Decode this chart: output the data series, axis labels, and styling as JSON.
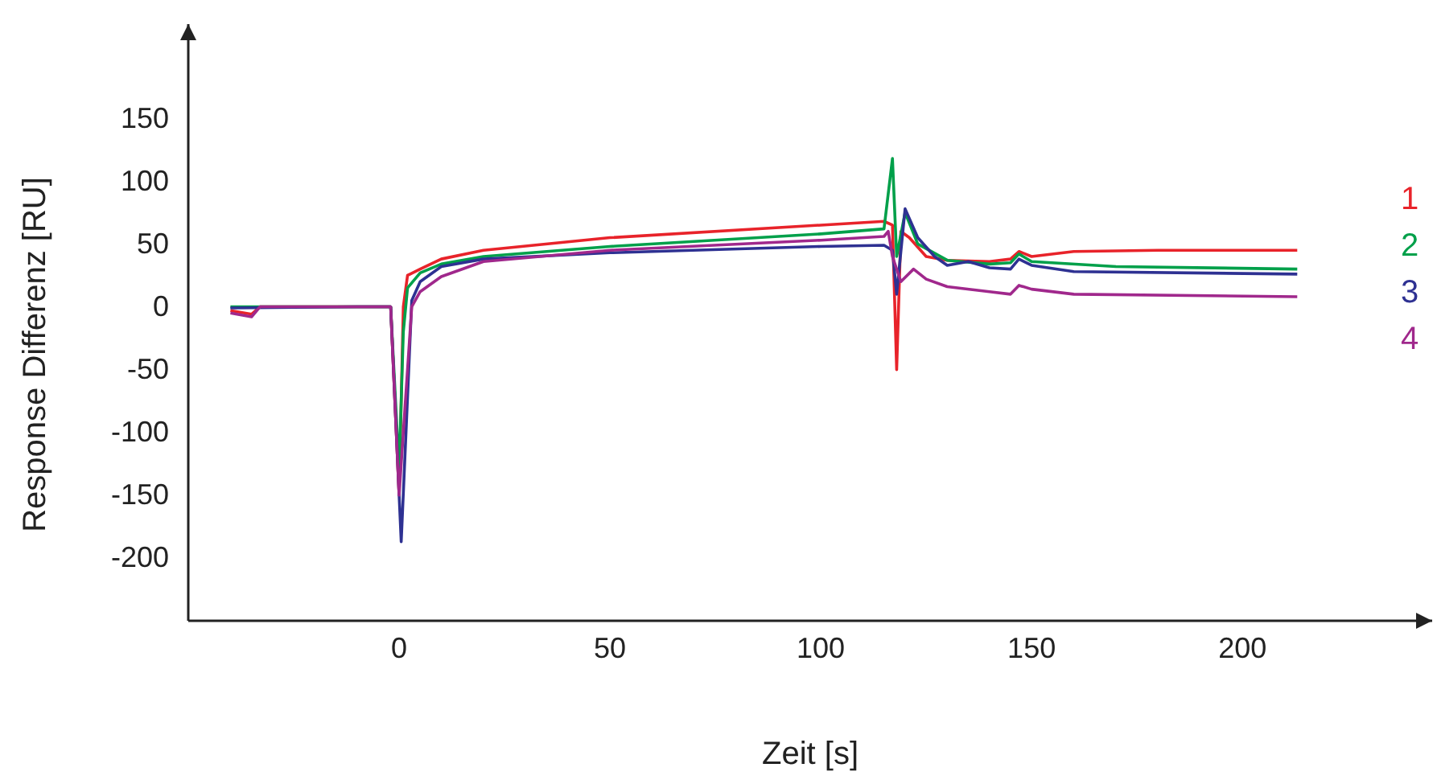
{
  "chart_data": {
    "type": "line",
    "xlabel": "Zeit [s]",
    "ylabel": "Response Differenz [RU]",
    "xlim": [
      -50,
      245
    ],
    "ylim": [
      -250,
      225
    ],
    "xticks": [
      0,
      50,
      100,
      150,
      200
    ],
    "yticks": [
      -200,
      -150,
      -100,
      -50,
      0,
      50,
      100,
      150
    ],
    "grid": false,
    "legend": "right",
    "marker": "none",
    "line_style": "solid",
    "series": [
      {
        "name": "1",
        "color": "#e8232a",
        "x": [
          -40,
          -35,
          -33,
          -10,
          -2,
          0,
          1,
          2,
          5,
          10,
          20,
          50,
          100,
          115,
          117,
          118,
          119,
          121,
          125,
          130,
          140,
          145,
          147,
          150,
          160,
          180,
          213
        ],
        "values": [
          -3,
          -6,
          0,
          0,
          0,
          -150,
          0,
          25,
          30,
          38,
          45,
          55,
          65,
          68,
          65,
          -50,
          60,
          55,
          40,
          37,
          36,
          38,
          44,
          40,
          44,
          45,
          45
        ]
      },
      {
        "name": "2",
        "color": "#00a04a",
        "x": [
          -40,
          -10,
          -2,
          0,
          1,
          2,
          5,
          10,
          20,
          50,
          100,
          115,
          117,
          118,
          120,
          123,
          130,
          140,
          145,
          147,
          150,
          170,
          213
        ],
        "values": [
          0,
          0,
          0,
          -130,
          -20,
          15,
          27,
          34,
          40,
          48,
          58,
          62,
          118,
          40,
          75,
          50,
          37,
          34,
          35,
          42,
          36,
          32,
          30
        ]
      },
      {
        "name": "3",
        "color": "#2e3192",
        "x": [
          -40,
          -10,
          -2,
          0.5,
          3,
          5,
          10,
          20,
          50,
          100,
          115,
          117,
          118,
          120,
          123,
          127,
          130,
          135,
          140,
          145,
          147,
          150,
          160,
          213
        ],
        "values": [
          -1,
          0,
          0,
          -187,
          5,
          20,
          32,
          38,
          43,
          48,
          49,
          45,
          10,
          78,
          55,
          40,
          33,
          36,
          31,
          30,
          38,
          33,
          28,
          26
        ]
      },
      {
        "name": "4",
        "color": "#a0288c",
        "x": [
          -40,
          -35,
          -33,
          -10,
          -2,
          0,
          3,
          5,
          10,
          20,
          50,
          100,
          115,
          116,
          117,
          119,
          122,
          125,
          130,
          140,
          145,
          147,
          150,
          160,
          213
        ],
        "values": [
          -5,
          -8,
          0,
          0,
          0,
          -150,
          0,
          12,
          24,
          36,
          45,
          53,
          56,
          60,
          40,
          20,
          30,
          22,
          16,
          12,
          10,
          17,
          14,
          10,
          8
        ]
      }
    ]
  }
}
